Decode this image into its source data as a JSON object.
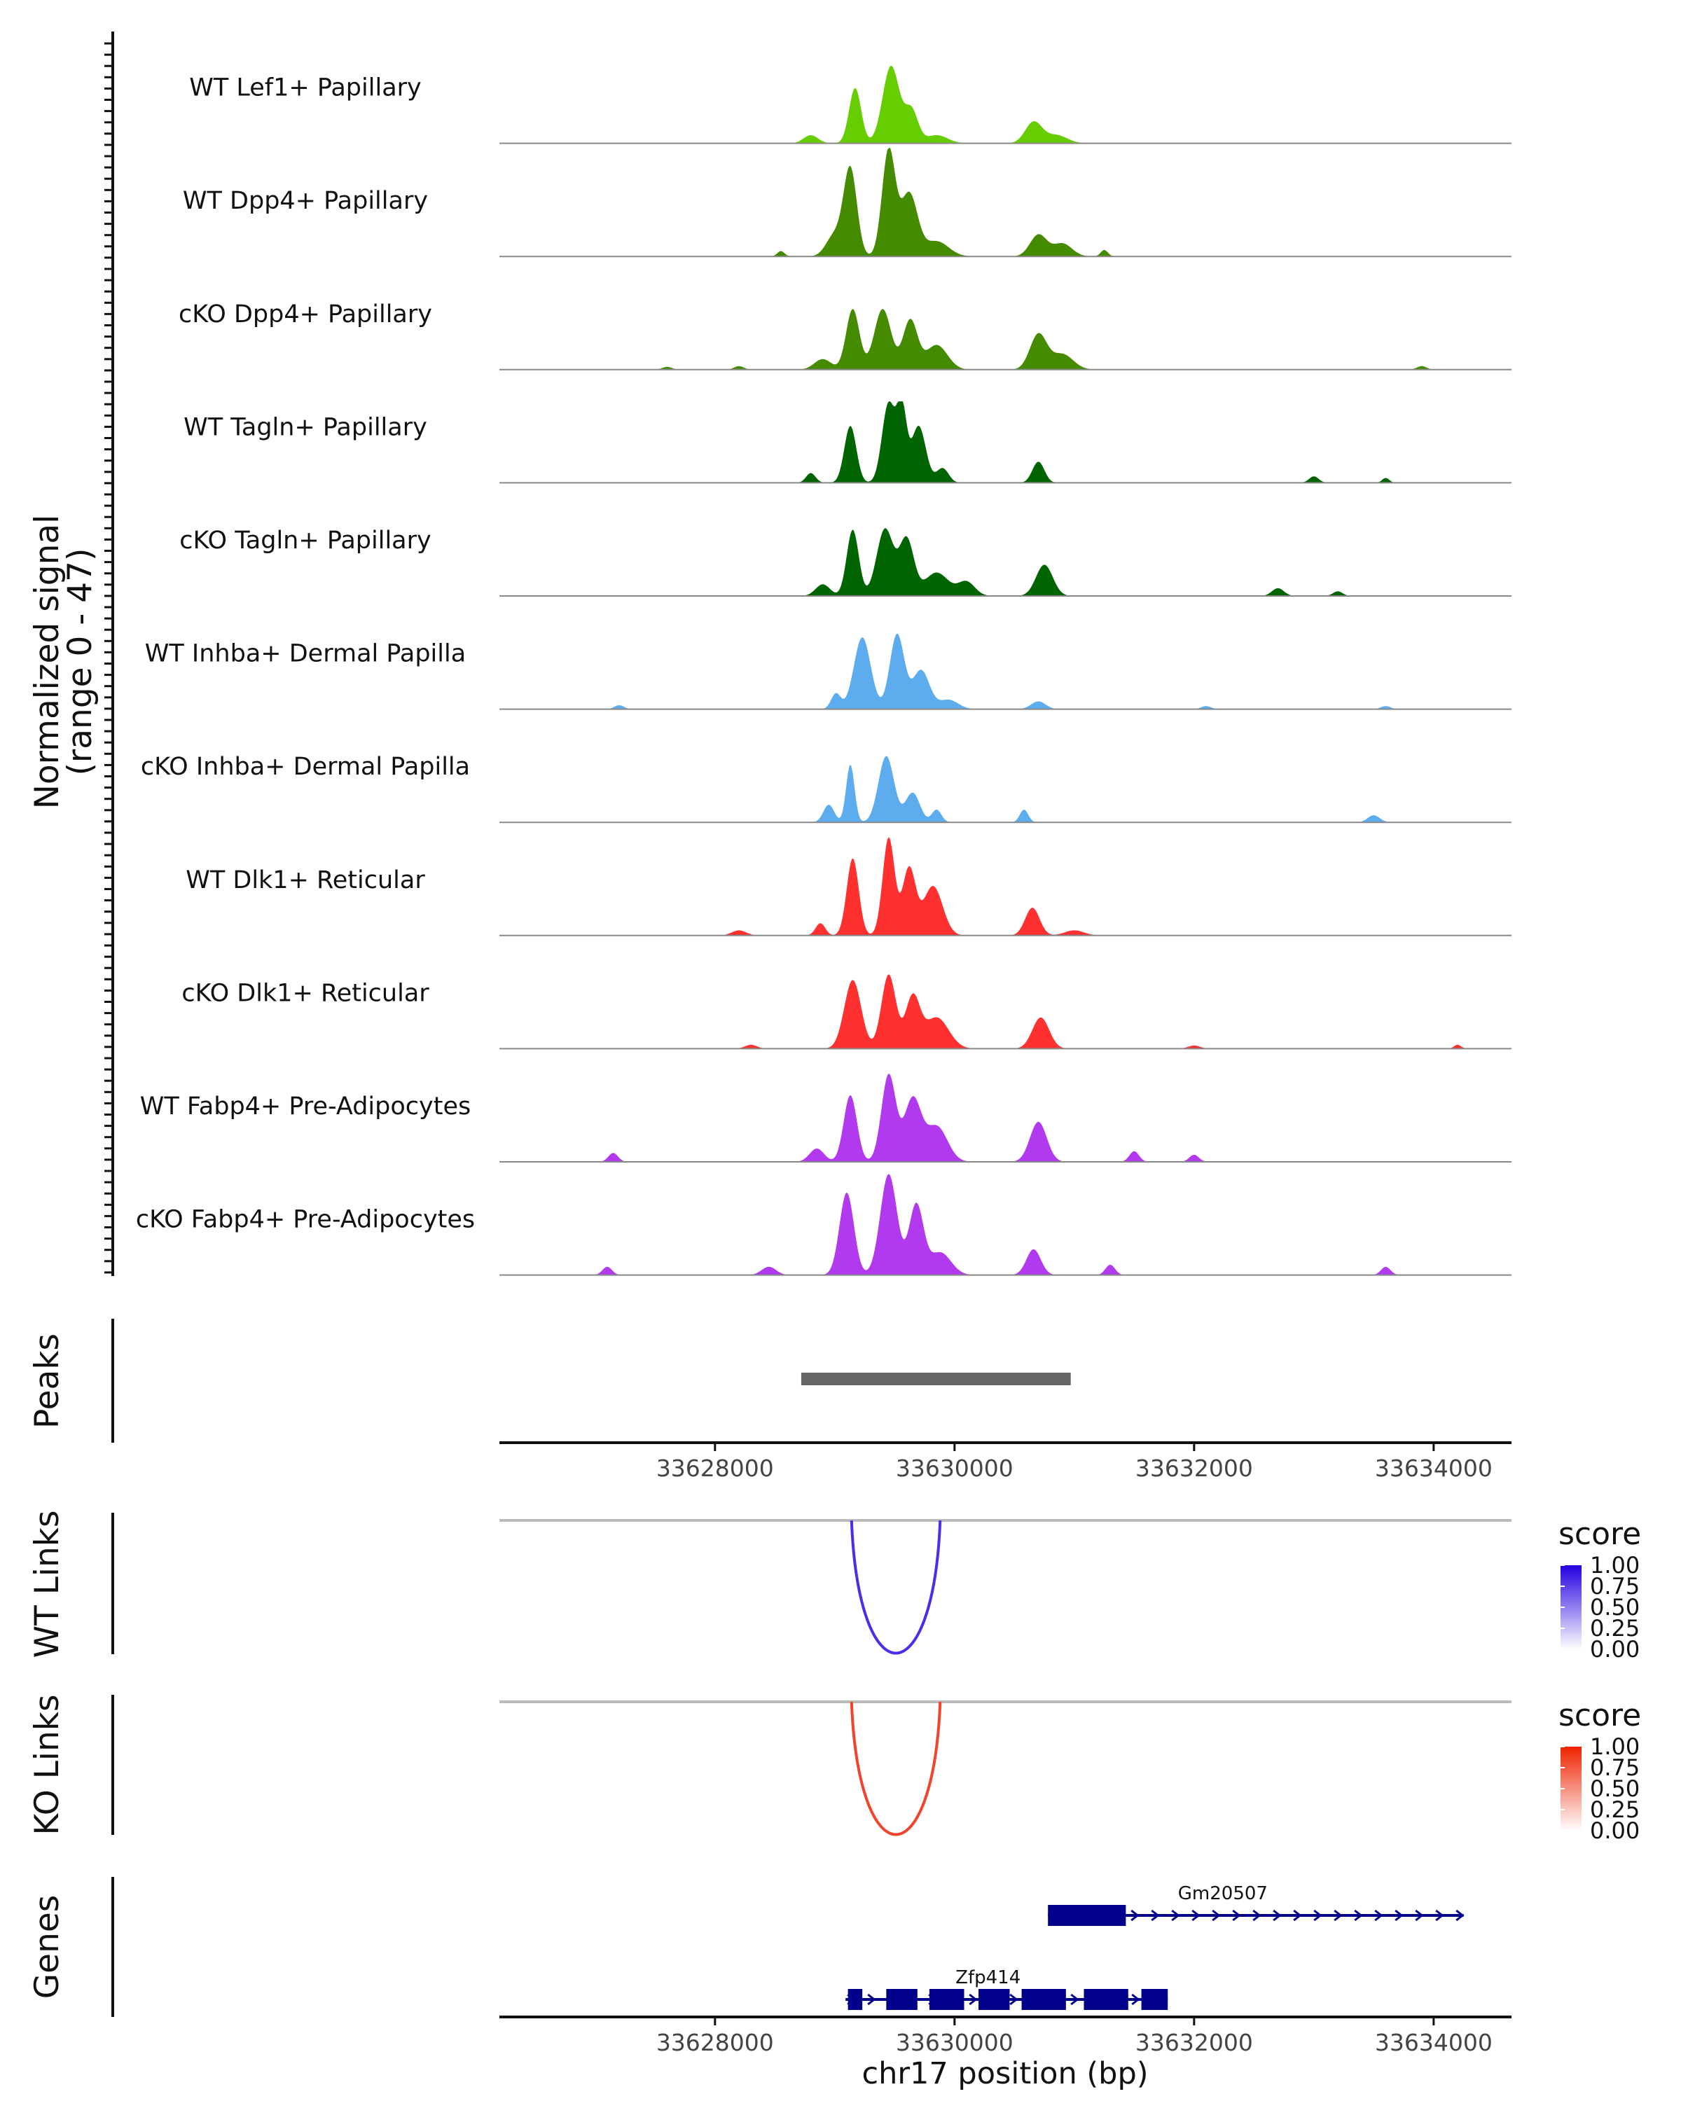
{
  "chart_data": {
    "type": "area",
    "chromosome": "chr17",
    "xlabel": "chr17 position (bp)",
    "xlim": [
      33626200,
      33634650
    ],
    "x_ticks": [
      33628000,
      33630000,
      33632000,
      33634000
    ],
    "x_tick_labels": [
      "33628000",
      "33630000",
      "33632000",
      "33634000"
    ],
    "coverage": {
      "ylabel_line1": "Normalized signal",
      "ylabel_line2": "(range 0 - 47)",
      "ylim": [
        0,
        47
      ],
      "tracks": [
        {
          "name": "WT Lef1+ Papillary",
          "color": "#66CD00",
          "scale": 0.75,
          "peaks": [
            [
              33629170,
              50,
              0.68
            ],
            [
              33629470,
              70,
              0.95
            ],
            [
              33629640,
              55,
              0.4
            ],
            [
              33629850,
              90,
              0.1
            ],
            [
              33630660,
              70,
              0.26
            ],
            [
              33630850,
              90,
              0.1
            ],
            [
              33628800,
              60,
              0.1
            ]
          ]
        },
        {
          "name": "WT Dpp4+ Papillary",
          "color": "#458B00",
          "scale": 1.0,
          "peaks": [
            [
              33629130,
              55,
              0.8
            ],
            [
              33629450,
              55,
              0.98
            ],
            [
              33629620,
              70,
              0.58
            ],
            [
              33629000,
              70,
              0.2
            ],
            [
              33629850,
              100,
              0.14
            ],
            [
              33630700,
              70,
              0.2
            ],
            [
              33630900,
              80,
              0.12
            ],
            [
              33628550,
              30,
              0.05
            ],
            [
              33631250,
              30,
              0.06
            ]
          ]
        },
        {
          "name": "cKO Dpp4+ Papillary",
          "color": "#458B00",
          "scale": 0.65,
          "peaks": [
            [
              33629150,
              55,
              0.86
            ],
            [
              33629400,
              70,
              0.86
            ],
            [
              33629630,
              60,
              0.7
            ],
            [
              33629850,
              90,
              0.35
            ],
            [
              33630700,
              70,
              0.5
            ],
            [
              33630900,
              90,
              0.22
            ],
            [
              33628900,
              70,
              0.15
            ],
            [
              33628200,
              40,
              0.05
            ],
            [
              33627600,
              40,
              0.04
            ],
            [
              33633900,
              40,
              0.05
            ]
          ]
        },
        {
          "name": "WT Tagln+ Papillary",
          "color": "#006400",
          "scale": 0.75,
          "peaks": [
            [
              33629130,
              50,
              0.7
            ],
            [
              33629450,
              55,
              0.98
            ],
            [
              33629560,
              40,
              0.88
            ],
            [
              33629700,
              60,
              0.7
            ],
            [
              33629900,
              50,
              0.18
            ],
            [
              33630700,
              50,
              0.26
            ],
            [
              33628800,
              40,
              0.12
            ],
            [
              33633000,
              40,
              0.08
            ],
            [
              33633600,
              30,
              0.06
            ]
          ]
        },
        {
          "name": "cKO Tagln+ Papillary",
          "color": "#006400",
          "scale": 0.72,
          "peaks": [
            [
              33629150,
              50,
              0.85
            ],
            [
              33629420,
              70,
              0.86
            ],
            [
              33629600,
              60,
              0.72
            ],
            [
              33629850,
              100,
              0.3
            ],
            [
              33630100,
              70,
              0.18
            ],
            [
              33630750,
              70,
              0.4
            ],
            [
              33628900,
              60,
              0.15
            ],
            [
              33632700,
              50,
              0.1
            ],
            [
              33633200,
              40,
              0.06
            ]
          ]
        },
        {
          "name": "WT Inhba+ Dermal Papilla",
          "color": "#5CACEE",
          "scale": 0.72,
          "peaks": [
            [
              33629230,
              70,
              0.92
            ],
            [
              33629520,
              60,
              0.96
            ],
            [
              33629720,
              70,
              0.5
            ],
            [
              33629010,
              40,
              0.2
            ],
            [
              33629950,
              80,
              0.12
            ],
            [
              33630700,
              60,
              0.1
            ],
            [
              33627200,
              40,
              0.05
            ],
            [
              33632100,
              40,
              0.04
            ],
            [
              33633600,
              40,
              0.04
            ]
          ]
        },
        {
          "name": "cKO Inhba+ Dermal Papilla",
          "color": "#5CACEE",
          "scale": 0.65,
          "peaks": [
            [
              33629130,
              35,
              0.82
            ],
            [
              33629430,
              65,
              0.94
            ],
            [
              33629650,
              60,
              0.42
            ],
            [
              33628950,
              45,
              0.25
            ],
            [
              33629850,
              40,
              0.18
            ],
            [
              33630580,
              35,
              0.18
            ],
            [
              33633500,
              50,
              0.1
            ]
          ]
        },
        {
          "name": "WT Dlk1+ Reticular",
          "color": "#FF3030",
          "scale": 0.95,
          "peaks": [
            [
              33629150,
              50,
              0.75
            ],
            [
              33629450,
              50,
              0.95
            ],
            [
              33629620,
              55,
              0.65
            ],
            [
              33629820,
              80,
              0.48
            ],
            [
              33630650,
              60,
              0.27
            ],
            [
              33628880,
              40,
              0.12
            ],
            [
              33628200,
              60,
              0.05
            ],
            [
              33631000,
              80,
              0.05
            ]
          ]
        },
        {
          "name": "cKO Dlk1+ Reticular",
          "color": "#FF3030",
          "scale": 0.72,
          "peaks": [
            [
              33629150,
              70,
              0.88
            ],
            [
              33629450,
              60,
              0.95
            ],
            [
              33629650,
              60,
              0.65
            ],
            [
              33629850,
              100,
              0.4
            ],
            [
              33630720,
              70,
              0.4
            ],
            [
              33628300,
              50,
              0.05
            ],
            [
              33632000,
              50,
              0.04
            ],
            [
              33634200,
              30,
              0.05
            ]
          ]
        },
        {
          "name": "WT Fabp4+ Pre-Adipocytes",
          "color": "#B23AEE",
          "scale": 0.82,
          "peaks": [
            [
              33629130,
              55,
              0.75
            ],
            [
              33629450,
              60,
              0.98
            ],
            [
              33629650,
              70,
              0.7
            ],
            [
              33629850,
              90,
              0.4
            ],
            [
              33630700,
              70,
              0.45
            ],
            [
              33628850,
              60,
              0.15
            ],
            [
              33627150,
              40,
              0.1
            ],
            [
              33631500,
              40,
              0.12
            ],
            [
              33632000,
              40,
              0.08
            ]
          ]
        },
        {
          "name": "cKO Fabp4+ Pre-Adipocytes",
          "color": "#B23AEE",
          "scale": 0.95,
          "peaks": [
            [
              33629100,
              60,
              0.8
            ],
            [
              33629450,
              70,
              0.98
            ],
            [
              33629680,
              60,
              0.68
            ],
            [
              33629880,
              90,
              0.22
            ],
            [
              33630660,
              60,
              0.25
            ],
            [
              33628450,
              60,
              0.08
            ],
            [
              33627100,
              40,
              0.08
            ],
            [
              33631300,
              40,
              0.1
            ],
            [
              33633600,
              40,
              0.08
            ]
          ]
        }
      ]
    },
    "peaks_track": {
      "label": "Peaks",
      "color": "#666666",
      "regions": [
        [
          33628720,
          33630970
        ]
      ]
    },
    "links": [
      {
        "label": "WT Links",
        "color": "#4F2BEA",
        "legend_low": "#FFFFFF",
        "legend_high": "#2200E0",
        "start": 33629140,
        "end": 33629880,
        "score": 1.0
      },
      {
        "label": "KO Links",
        "color": "#F0452B",
        "legend_low": "#FFFFFF",
        "legend_high": "#EE2200",
        "start": 33629140,
        "end": 33629880,
        "score": 1.0
      }
    ],
    "legend": {
      "title": "score",
      "ticks": [
        "1.00",
        "0.75",
        "0.50",
        "0.25",
        "0.00"
      ]
    },
    "genes_track": {
      "label": "Genes",
      "color": "#00008B",
      "genes": [
        {
          "name": "Gm20507",
          "start": 33630780,
          "end": 33634250,
          "strand": "+",
          "exons": [
            [
              33630780,
              33631430
            ]
          ],
          "label_pos": 33632240,
          "row": 1
        },
        {
          "name": "Zfp414",
          "start": 33629090,
          "end": 33631780,
          "strand": "+",
          "exons": [
            [
              33629110,
              33629230
            ],
            [
              33629430,
              33629690
            ],
            [
              33629790,
              33630080
            ],
            [
              33630200,
              33630460
            ],
            [
              33630560,
              33630930
            ],
            [
              33631080,
              33631450
            ],
            [
              33631560,
              33631780
            ]
          ],
          "label_pos": 33630280,
          "row": 0
        }
      ]
    }
  }
}
